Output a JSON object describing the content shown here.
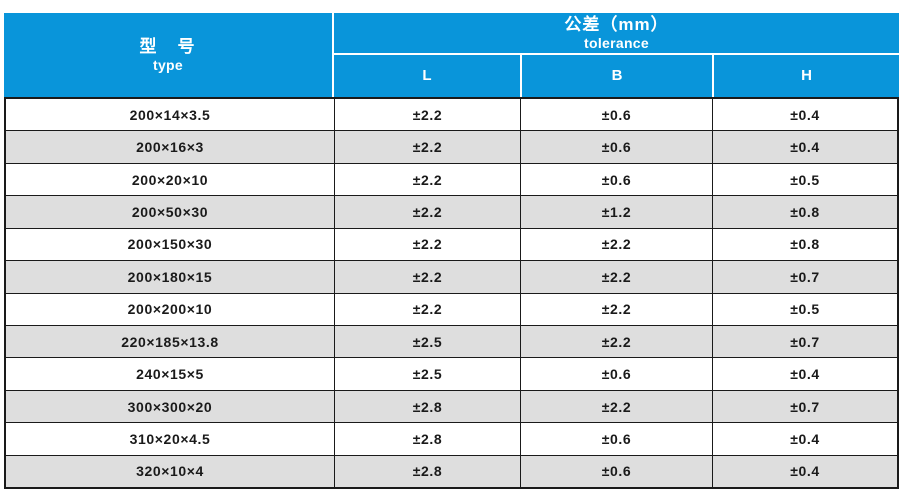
{
  "colors": {
    "header_blue": "#0995da",
    "alt_row_gray": "#dedede",
    "border_black": "#1a1a1a",
    "header_text": "#ffffff"
  },
  "table": {
    "header": {
      "type_label_zh": "型　号",
      "type_label_en": "type",
      "tolerance_label_zh": "公差（mm）",
      "tolerance_label_en": "tolerance",
      "columns": [
        "L",
        "B",
        "H"
      ]
    },
    "rows": [
      {
        "type": "200×14×3.5",
        "L": "±2.2",
        "B": "±0.6",
        "H": "±0.4"
      },
      {
        "type": "200×16×3",
        "L": "±2.2",
        "B": "±0.6",
        "H": "±0.4"
      },
      {
        "type": "200×20×10",
        "L": "±2.2",
        "B": "±0.6",
        "H": "±0.5"
      },
      {
        "type": "200×50×30",
        "L": "±2.2",
        "B": "±1.2",
        "H": "±0.8"
      },
      {
        "type": "200×150×30",
        "L": "±2.2",
        "B": "±2.2",
        "H": "±0.8"
      },
      {
        "type": "200×180×15",
        "L": "±2.2",
        "B": "±2.2",
        "H": "±0.7"
      },
      {
        "type": "200×200×10",
        "L": "±2.2",
        "B": "±2.2",
        "H": "±0.5"
      },
      {
        "type": "220×185×13.8",
        "L": "±2.5",
        "B": "±2.2",
        "H": "±0.7"
      },
      {
        "type": "240×15×5",
        "L": "±2.5",
        "B": "±0.6",
        "H": "±0.4"
      },
      {
        "type": "300×300×20",
        "L": "±2.8",
        "B": "±2.2",
        "H": "±0.7"
      },
      {
        "type": "310×20×4.5",
        "L": "±2.8",
        "B": "±0.6",
        "H": "±0.4"
      },
      {
        "type": "320×10×4",
        "L": "±2.8",
        "B": "±0.6",
        "H": "±0.4"
      }
    ]
  }
}
